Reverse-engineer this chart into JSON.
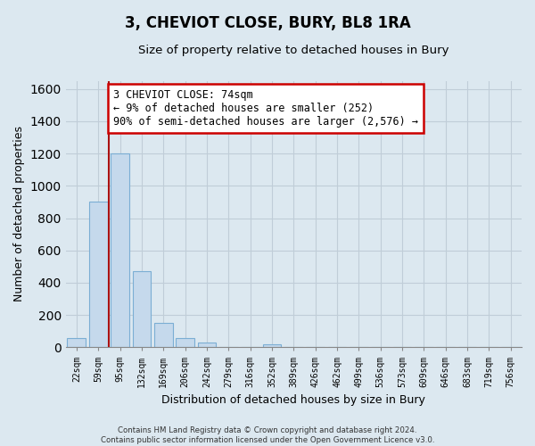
{
  "title": "3, CHEVIOT CLOSE, BURY, BL8 1RA",
  "subtitle": "Size of property relative to detached houses in Bury",
  "xlabel": "Distribution of detached houses by size in Bury",
  "ylabel": "Number of detached properties",
  "bar_labels": [
    "22sqm",
    "59sqm",
    "95sqm",
    "132sqm",
    "169sqm",
    "206sqm",
    "242sqm",
    "279sqm",
    "316sqm",
    "352sqm",
    "389sqm",
    "426sqm",
    "462sqm",
    "499sqm",
    "536sqm",
    "573sqm",
    "609sqm",
    "646sqm",
    "683sqm",
    "719sqm",
    "756sqm"
  ],
  "bar_values": [
    55,
    900,
    1200,
    470,
    150,
    60,
    30,
    0,
    0,
    20,
    0,
    0,
    0,
    0,
    0,
    0,
    0,
    0,
    0,
    0,
    0
  ],
  "bar_color": "#c5d9ec",
  "bar_edge_color": "#7baed4",
  "vline_x": 1.5,
  "vline_color": "#aa1111",
  "ylim": [
    0,
    1650
  ],
  "yticks": [
    0,
    200,
    400,
    600,
    800,
    1000,
    1200,
    1400,
    1600
  ],
  "annotation_text": "3 CHEVIOT CLOSE: 74sqm\n← 9% of detached houses are smaller (252)\n90% of semi-detached houses are larger (2,576) →",
  "annotation_box_color": "#ffffff",
  "annotation_box_edge": "#cc0000",
  "footer_line1": "Contains HM Land Registry data © Crown copyright and database right 2024.",
  "footer_line2": "Contains public sector information licensed under the Open Government Licence v3.0.",
  "background_color": "#dce8f0",
  "plot_bg_color": "#dce8f0",
  "grid_color": "#c0cdd8"
}
